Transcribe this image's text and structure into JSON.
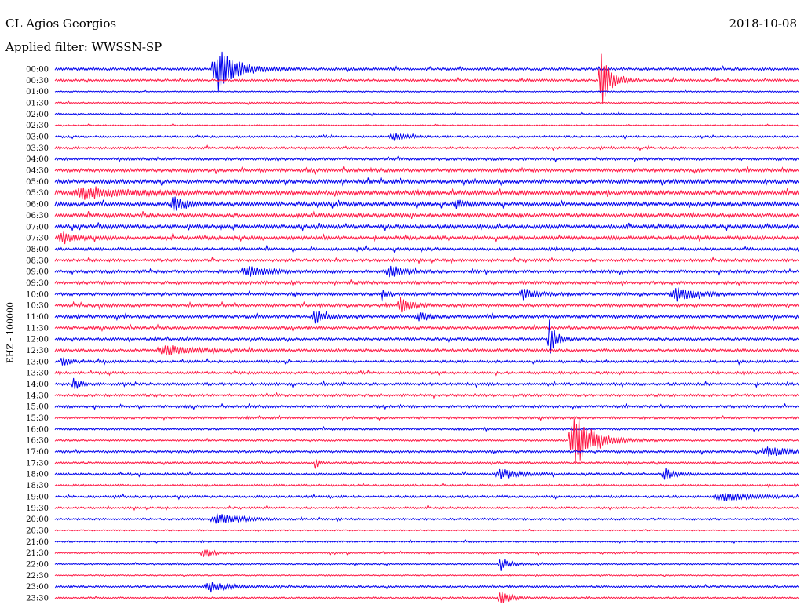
{
  "header": {
    "station": "CL Agios Georgios",
    "filter": "Applied filter: WWSSN-SP",
    "date": "2018-10-08"
  },
  "side_label": "EHZ - 100000",
  "chart_data": {
    "type": "line",
    "title": "CL Agios Georgios",
    "subtitle": "Applied filter: WWSSN-SP",
    "ylabel": "EHZ - 100000",
    "colors": {
      "even": "#0000ee",
      "odd": "#ff1744"
    },
    "row_labels": [
      "00:00",
      "00:30",
      "01:00",
      "01:30",
      "02:00",
      "02:30",
      "03:00",
      "03:30",
      "04:00",
      "04:30",
      "05:00",
      "05:30",
      "06:00",
      "06:30",
      "07:00",
      "07:30",
      "08:00",
      "08:30",
      "09:00",
      "09:30",
      "10:00",
      "10:30",
      "11:00",
      "11:30",
      "12:00",
      "12:30",
      "13:00",
      "13:30",
      "14:00",
      "14:30",
      "15:00",
      "15:30",
      "16:00",
      "16:30",
      "17:00",
      "17:30",
      "18:00",
      "18:30",
      "19:00",
      "19:30",
      "20:00",
      "20:30",
      "21:00",
      "21:30",
      "22:00",
      "22:30",
      "23:00",
      "23:30"
    ],
    "noise_level": [
      1.0,
      0.9,
      0.5,
      0.6,
      0.7,
      0.5,
      0.8,
      0.9,
      1.0,
      1.3,
      1.5,
      1.7,
      1.6,
      1.5,
      1.5,
      1.4,
      1.1,
      1.1,
      1.2,
      1.2,
      1.2,
      1.2,
      1.2,
      1.1,
      1.0,
      1.1,
      1.0,
      1.0,
      1.1,
      1.0,
      1.0,
      0.9,
      0.8,
      0.7,
      0.9,
      0.8,
      0.9,
      0.8,
      0.9,
      0.8,
      0.8,
      0.5,
      0.6,
      0.6,
      0.6,
      0.5,
      0.8,
      0.7
    ],
    "events": [
      {
        "row": 0,
        "x": 0.22,
        "amp": 26,
        "dur": 0.03
      },
      {
        "row": 1,
        "x": 0.735,
        "amp": 30,
        "dur": 0.015
      },
      {
        "row": 6,
        "x": 0.455,
        "amp": 5,
        "dur": 0.02
      },
      {
        "row": 11,
        "x": 0.04,
        "amp": 7,
        "dur": 0.06
      },
      {
        "row": 12,
        "x": 0.16,
        "amp": 10,
        "dur": 0.015
      },
      {
        "row": 12,
        "x": 0.54,
        "amp": 6,
        "dur": 0.01
      },
      {
        "row": 15,
        "x": 0.01,
        "amp": 7,
        "dur": 0.02
      },
      {
        "row": 18,
        "x": 0.26,
        "amp": 6,
        "dur": 0.03
      },
      {
        "row": 18,
        "x": 0.45,
        "amp": 7,
        "dur": 0.02
      },
      {
        "row": 20,
        "x": 0.44,
        "amp": 8,
        "dur": 0.005
      },
      {
        "row": 20,
        "x": 0.63,
        "amp": 6,
        "dur": 0.02
      },
      {
        "row": 20,
        "x": 0.835,
        "amp": 8,
        "dur": 0.03
      },
      {
        "row": 21,
        "x": 0.465,
        "amp": 10,
        "dur": 0.015
      },
      {
        "row": 22,
        "x": 0.35,
        "amp": 9,
        "dur": 0.015
      },
      {
        "row": 22,
        "x": 0.49,
        "amp": 6,
        "dur": 0.015
      },
      {
        "row": 24,
        "x": 0.665,
        "amp": 24,
        "dur": 0.01
      },
      {
        "row": 25,
        "x": 0.15,
        "amp": 6,
        "dur": 0.04
      },
      {
        "row": 26,
        "x": 0.01,
        "amp": 6,
        "dur": 0.01
      },
      {
        "row": 28,
        "x": 0.025,
        "amp": 7,
        "dur": 0.01
      },
      {
        "row": 33,
        "x": 0.7,
        "amp": 32,
        "dur": 0.03
      },
      {
        "row": 34,
        "x": 0.96,
        "amp": 6,
        "dur": 0.03
      },
      {
        "row": 35,
        "x": 0.35,
        "amp": 8,
        "dur": 0.005
      },
      {
        "row": 36,
        "x": 0.6,
        "amp": 6,
        "dur": 0.03
      },
      {
        "row": 36,
        "x": 0.82,
        "amp": 7,
        "dur": 0.015
      },
      {
        "row": 38,
        "x": 0.9,
        "amp": 5,
        "dur": 0.04
      },
      {
        "row": 40,
        "x": 0.22,
        "amp": 7,
        "dur": 0.03
      },
      {
        "row": 43,
        "x": 0.2,
        "amp": 6,
        "dur": 0.015
      },
      {
        "row": 44,
        "x": 0.6,
        "amp": 8,
        "dur": 0.015
      },
      {
        "row": 46,
        "x": 0.21,
        "amp": 6,
        "dur": 0.03
      },
      {
        "row": 47,
        "x": 0.6,
        "amp": 9,
        "dur": 0.015
      }
    ]
  }
}
